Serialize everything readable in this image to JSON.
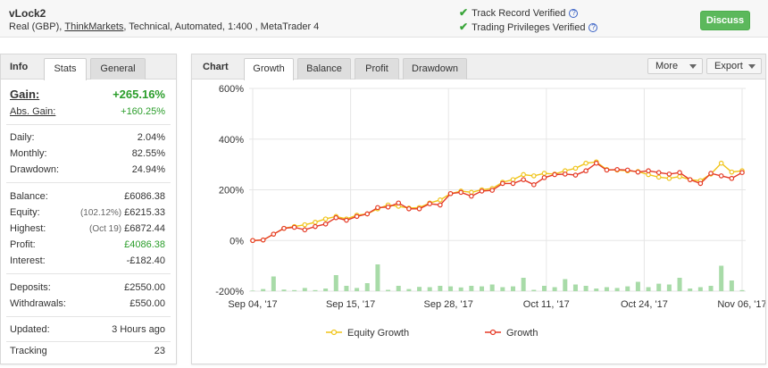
{
  "header": {
    "system_name": "vLock2",
    "account_type": "Real (GBP),",
    "broker": "ThinkMarkets",
    "details": ", Technical, Automated, 1:400 , MetaTrader 4",
    "verif_track": "Track Record Verified",
    "verif_trading": "Trading Privileges Verified",
    "help_glyph": "?",
    "check_glyph": "✔",
    "discuss_label": "Discuss"
  },
  "left_panel": {
    "title": "Info",
    "tabs": [
      "Stats",
      "General"
    ],
    "stats": {
      "gain_label": "Gain:",
      "gain_value": "+265.16%",
      "abs_gain_label": "Abs. Gain:",
      "abs_gain_value": "+160.25%",
      "daily_label": "Daily:",
      "daily_value": "2.04%",
      "monthly_label": "Monthly:",
      "monthly_value": "82.55%",
      "drawdown_label": "Drawdown:",
      "drawdown_value": "24.94%",
      "balance_label": "Balance:",
      "balance_value": "£6086.38",
      "equity_label": "Equity:",
      "equity_sub": "(102.12%)",
      "equity_value": "£6215.33",
      "highest_label": "Highest:",
      "highest_sub": "(Oct 19)",
      "highest_value": "£6872.44",
      "profit_label": "Profit:",
      "profit_value": "£4086.38",
      "interest_label": "Interest:",
      "interest_value": "-£182.40",
      "deposits_label": "Deposits:",
      "deposits_value": "£2550.00",
      "withdrawals_label": "Withdrawals:",
      "withdrawals_value": "£550.00",
      "updated_label": "Updated:",
      "updated_value": "3 Hours ago",
      "tracking_label": "Tracking",
      "tracking_value": "23"
    }
  },
  "chart_panel": {
    "title": "Chart",
    "tabs": [
      "Growth",
      "Balance",
      "Profit",
      "Drawdown"
    ],
    "more_label": "More",
    "export_label": "Export"
  },
  "colors": {
    "growth": "#e53a26",
    "equity": "#f0c419",
    "bars": "#a8dba8",
    "grid": "#e6e6e6",
    "accent_green": "#2a9d2a",
    "discuss_bg": "#5cb85c"
  },
  "chart_data": {
    "type": "line",
    "title": "",
    "xlabel": "",
    "ylabel": "",
    "ylim": [
      -200,
      600
    ],
    "y_ticks": [
      "600%",
      "400%",
      "200%",
      "0%",
      "-200%"
    ],
    "x_ticks": [
      "Sep 04, '17",
      "Sep 15, '17",
      "Sep 28, '17",
      "Oct 11, '17",
      "Oct 24, '17",
      "Nov 06, '17"
    ],
    "legend_position": "bottom",
    "series": [
      {
        "name": "Equity Growth",
        "values": [
          0,
          2,
          25,
          48,
          55,
          62,
          72,
          85,
          95,
          85,
          100,
          105,
          125,
          140,
          135,
          128,
          130,
          148,
          160,
          185,
          195,
          190,
          200,
          205,
          230,
          240,
          260,
          255,
          265,
          262,
          275,
          285,
          305,
          310,
          280,
          278,
          275,
          272,
          260,
          250,
          245,
          252,
          240,
          236,
          262,
          305,
          270,
          275
        ]
      },
      {
        "name": "Growth",
        "values": [
          0,
          2,
          25,
          48,
          52,
          42,
          55,
          65,
          90,
          80,
          95,
          105,
          130,
          132,
          148,
          125,
          125,
          145,
          140,
          185,
          190,
          175,
          195,
          198,
          225,
          225,
          240,
          220,
          248,
          260,
          262,
          258,
          275,
          305,
          278,
          280,
          278,
          270,
          275,
          268,
          262,
          268,
          240,
          225,
          265,
          255,
          245,
          268
        ]
      },
      {
        "name": "",
        "values": [
          2,
          8,
          55,
          6,
          4,
          12,
          4,
          10,
          60,
          20,
          12,
          30,
          100,
          5,
          20,
          8,
          16,
          15,
          20,
          18,
          14,
          20,
          18,
          25,
          15,
          18,
          50,
          5,
          20,
          15,
          45,
          25,
          20,
          10,
          15,
          12,
          18,
          35,
          15,
          28,
          25,
          50,
          10,
          15,
          20,
          95,
          40,
          4
        ]
      }
    ]
  }
}
